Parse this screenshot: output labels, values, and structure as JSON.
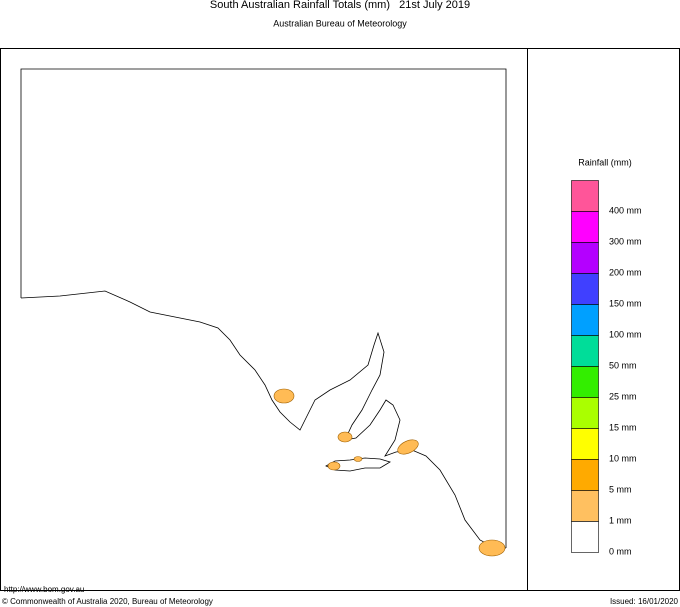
{
  "header": {
    "title": "South Australian Rainfall Totals (mm)   21st July 2019",
    "subtitle": "Australian Bureau of Meteorology"
  },
  "legend": {
    "title": "Rainfall (mm)",
    "items": [
      {
        "color": "#ff5599",
        "label": "400 mm"
      },
      {
        "color": "#ff00ff",
        "label": "300 mm"
      },
      {
        "color": "#b400ff",
        "label": "200 mm"
      },
      {
        "color": "#4040ff",
        "label": "150 mm"
      },
      {
        "color": "#00a0ff",
        "label": "100 mm"
      },
      {
        "color": "#00dd99",
        "label": "50 mm"
      },
      {
        "color": "#33ee00",
        "label": "25 mm"
      },
      {
        "color": "#aaff00",
        "label": "15 mm"
      },
      {
        "color": "#ffff00",
        "label": "10 mm"
      },
      {
        "color": "#ffaa00",
        "label": "5 mm"
      },
      {
        "color": "#ffc060",
        "label": "1 mm"
      },
      {
        "color": "#ffffff",
        "label": "0 mm"
      }
    ]
  },
  "footer": {
    "url": "http://www.bom.gov.au",
    "copyright": "© Commonwealth of Australia 2020, Bureau of Meteorology",
    "issued": "Issued: 16/01/2020"
  }
}
